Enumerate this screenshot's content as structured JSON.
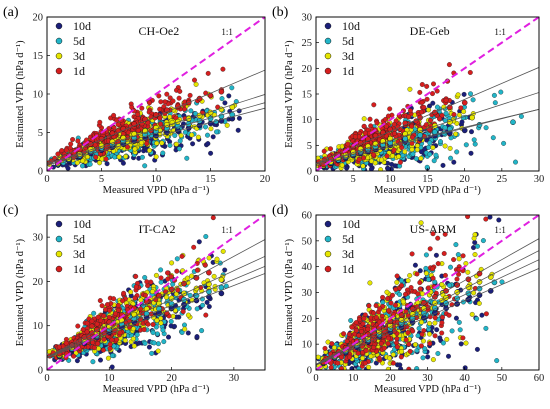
{
  "chart_data": [
    {
      "type": "scatter",
      "panel_label": "(a)",
      "site": "CH-Oe2",
      "xlabel": "Measured VPD (hPa d⁻¹)",
      "ylabel": "Estimated VPD (hPa d⁻¹)",
      "xlim": [
        0,
        20
      ],
      "ylim": [
        0,
        20
      ],
      "xticks": [
        0,
        5,
        10,
        15,
        20
      ],
      "yticks": [
        0,
        5,
        10,
        15,
        20
      ],
      "one_to_one_label": "1:1",
      "legend_position": "top-left",
      "series": [
        {
          "name": "10d",
          "color": "#1b1f7a",
          "x": [
            1,
            2,
            3,
            4,
            5,
            6,
            7,
            8,
            9,
            10,
            11,
            12,
            13,
            14,
            15,
            16,
            17
          ],
          "y": [
            0.8,
            1.3,
            1.8,
            2.3,
            2.7,
            3.1,
            3.5,
            3.9,
            4.3,
            4.6,
            5.0,
            5.3,
            5.6,
            5.9,
            6.2,
            6.5,
            6.8
          ]
        },
        {
          "name": "5d",
          "color": "#21b5c8",
          "x": [
            1,
            2,
            3,
            4,
            5,
            6,
            7,
            8,
            9,
            10,
            11,
            12,
            13,
            14,
            15,
            16,
            17
          ],
          "y": [
            0.9,
            1.5,
            2.0,
            2.6,
            3.0,
            3.5,
            3.9,
            4.3,
            4.7,
            5.1,
            5.5,
            5.8,
            6.1,
            6.5,
            6.8,
            7.1,
            7.3
          ]
        },
        {
          "name": "3d",
          "color": "#e6e600",
          "x": [
            1,
            2,
            3,
            4,
            5,
            6,
            7,
            8,
            9,
            10,
            11,
            12,
            13,
            14,
            15,
            16,
            17
          ],
          "y": [
            1.0,
            1.6,
            2.2,
            2.8,
            3.3,
            3.8,
            4.3,
            4.8,
            5.2,
            5.6,
            6.0,
            6.4,
            6.8,
            7.2,
            7.6,
            8.0,
            8.3
          ]
        },
        {
          "name": "1d",
          "color": "#d61e1e",
          "x": [
            1,
            2,
            3,
            4,
            5,
            6,
            7,
            8,
            9,
            10,
            11,
            12,
            13,
            14,
            15,
            16
          ],
          "y": [
            1.2,
            2.0,
            2.8,
            3.5,
            4.2,
            4.9,
            5.5,
            6.1,
            6.7,
            7.3,
            7.9,
            8.4,
            8.9,
            9.4,
            9.8,
            10.3
          ]
        }
      ]
    },
    {
      "type": "scatter",
      "panel_label": "(b)",
      "site": "DE-Geb",
      "xlabel": "Measured VPD (hPa d⁻¹)",
      "ylabel": "Estimated VPD (hPa d⁻¹)",
      "xlim": [
        0,
        30
      ],
      "ylim": [
        0,
        30
      ],
      "xticks": [
        0,
        5,
        10,
        15,
        20,
        25,
        30
      ],
      "yticks": [
        0,
        5,
        10,
        15,
        20,
        25,
        30
      ],
      "one_to_one_label": "1:1",
      "legend_position": "top-left",
      "series": [
        {
          "name": "10d",
          "color": "#1b1f7a",
          "x": [
            1,
            2,
            3,
            4,
            5,
            6,
            7,
            8,
            9,
            10,
            12,
            14,
            16,
            18,
            20
          ],
          "y": [
            0.9,
            1.5,
            2.0,
            2.5,
            3.0,
            3.4,
            3.8,
            4.2,
            4.6,
            5.0,
            5.7,
            6.3,
            6.9,
            7.4,
            7.9
          ]
        },
        {
          "name": "5d",
          "color": "#21b5c8",
          "x": [
            1,
            2,
            3,
            4,
            5,
            6,
            7,
            8,
            9,
            10,
            12,
            14,
            16,
            18,
            22,
            26.5
          ],
          "y": [
            1.0,
            1.6,
            2.2,
            2.8,
            3.3,
            3.8,
            4.2,
            4.7,
            5.1,
            5.5,
            6.3,
            7.0,
            7.6,
            8.2,
            9.0,
            9.5
          ]
        },
        {
          "name": "3d",
          "color": "#e6e600",
          "x": [
            1,
            2,
            3,
            4,
            5,
            6,
            7,
            8,
            9,
            10,
            12,
            14,
            16,
            18,
            21
          ],
          "y": [
            1.1,
            1.8,
            2.5,
            3.1,
            3.7,
            4.3,
            4.8,
            5.3,
            5.8,
            6.3,
            7.2,
            8.0,
            8.8,
            9.5,
            10.4
          ]
        },
        {
          "name": "1d",
          "color": "#d61e1e",
          "x": [
            1,
            2,
            3,
            4,
            5,
            6,
            7,
            8,
            9,
            10,
            12,
            14,
            16,
            18,
            20
          ],
          "y": [
            1.3,
            2.3,
            3.2,
            4.0,
            4.8,
            5.5,
            6.2,
            6.9,
            7.5,
            8.1,
            9.3,
            10.4,
            11.4,
            12.4,
            13.3
          ]
        }
      ]
    },
    {
      "type": "scatter",
      "panel_label": "(c)",
      "site": "IT-CA2",
      "xlabel": "Measured VPD (hPa d⁻¹)",
      "ylabel": "Estimated VPD (hPa d⁻¹)",
      "xlim": [
        0,
        35
      ],
      "ylim": [
        0,
        35
      ],
      "xticks": [
        0,
        10,
        20,
        30
      ],
      "yticks": [
        0,
        10,
        20,
        30
      ],
      "one_to_one_label": "1:1",
      "legend_position": "top-left",
      "series": [
        {
          "name": "10d",
          "color": "#1b1f7a",
          "x": [
            2,
            4,
            6,
            8,
            10,
            12,
            14,
            16,
            18,
            20,
            22,
            24,
            26,
            28
          ],
          "y": [
            3.0,
            4.5,
            6.0,
            7.3,
            8.5,
            9.7,
            10.8,
            11.9,
            12.9,
            13.9,
            14.8,
            15.7,
            16.5,
            17.3
          ]
        },
        {
          "name": "5d",
          "color": "#21b5c8",
          "x": [
            2,
            4,
            6,
            8,
            10,
            12,
            14,
            16,
            18,
            20,
            22,
            24,
            26,
            28
          ],
          "y": [
            3.2,
            4.8,
            6.4,
            7.8,
            9.1,
            10.4,
            11.6,
            12.7,
            13.8,
            14.9,
            15.9,
            16.8,
            17.7,
            18.6
          ]
        },
        {
          "name": "3d",
          "color": "#e6e600",
          "x": [
            2,
            4,
            6,
            8,
            10,
            12,
            14,
            16,
            18,
            20,
            22,
            24,
            26,
            28
          ],
          "y": [
            3.4,
            5.1,
            6.8,
            8.3,
            9.8,
            11.2,
            12.5,
            13.8,
            15.0,
            16.2,
            17.3,
            18.4,
            19.4,
            20.4
          ]
        },
        {
          "name": "1d",
          "color": "#d61e1e",
          "x": [
            2,
            4,
            6,
            8,
            10,
            12,
            14,
            16,
            18,
            20,
            22,
            24,
            26
          ],
          "y": [
            3.7,
            5.6,
            7.4,
            9.1,
            10.8,
            12.4,
            13.9,
            15.4,
            16.8,
            18.2,
            19.5,
            20.8,
            22.0
          ]
        }
      ]
    },
    {
      "type": "scatter",
      "panel_label": "(d)",
      "site": "US-ARM",
      "xlabel": "Measured VPD (hPa d⁻¹)",
      "ylabel": "Estimated VPD (hPa d⁻¹)",
      "xlim": [
        0,
        60
      ],
      "ylim": [
        0,
        60
      ],
      "xticks": [
        0,
        10,
        20,
        30,
        40,
        50,
        60
      ],
      "yticks": [
        0,
        10,
        20,
        30,
        40,
        50,
        60
      ],
      "one_to_one_label": "1:1",
      "legend_position": "top-left",
      "series": [
        {
          "name": "10d",
          "color": "#1b1f7a",
          "x": [
            2,
            5,
            8,
            11,
            14,
            17,
            20,
            23,
            26,
            29,
            32,
            35,
            38,
            41,
            44,
            47
          ],
          "y": [
            2.5,
            4.6,
            6.7,
            8.8,
            10.8,
            12.8,
            14.7,
            16.6,
            18.5,
            20.3,
            22.1,
            23.9,
            25.6,
            27.3,
            29.0,
            30.6
          ]
        },
        {
          "name": "5d",
          "color": "#21b5c8",
          "x": [
            2,
            5,
            8,
            11,
            14,
            17,
            20,
            23,
            26,
            29,
            32,
            35,
            38,
            41,
            44,
            48
          ],
          "y": [
            2.7,
            5.0,
            7.3,
            9.5,
            11.7,
            13.8,
            15.9,
            18.0,
            20.0,
            22.0,
            24.0,
            25.9,
            27.8,
            29.7,
            31.5,
            33.9
          ]
        },
        {
          "name": "3d",
          "color": "#e6e600",
          "x": [
            2,
            5,
            8,
            11,
            14,
            17,
            20,
            23,
            26,
            29,
            32,
            35,
            38,
            41,
            44,
            47
          ],
          "y": [
            2.9,
            5.4,
            7.9,
            10.3,
            12.6,
            14.9,
            17.2,
            19.4,
            21.6,
            23.8,
            25.9,
            28.0,
            30.1,
            32.1,
            34.1,
            36.0
          ]
        },
        {
          "name": "1d",
          "color": "#d61e1e",
          "x": [
            2,
            5,
            8,
            11,
            14,
            17,
            20,
            23,
            26,
            29,
            32,
            35,
            38,
            41,
            44
          ],
          "y": [
            3.1,
            5.9,
            8.6,
            11.2,
            13.8,
            16.3,
            18.8,
            21.2,
            23.6,
            26.0,
            28.3,
            30.6,
            32.9,
            35.1,
            37.3
          ]
        }
      ]
    }
  ]
}
